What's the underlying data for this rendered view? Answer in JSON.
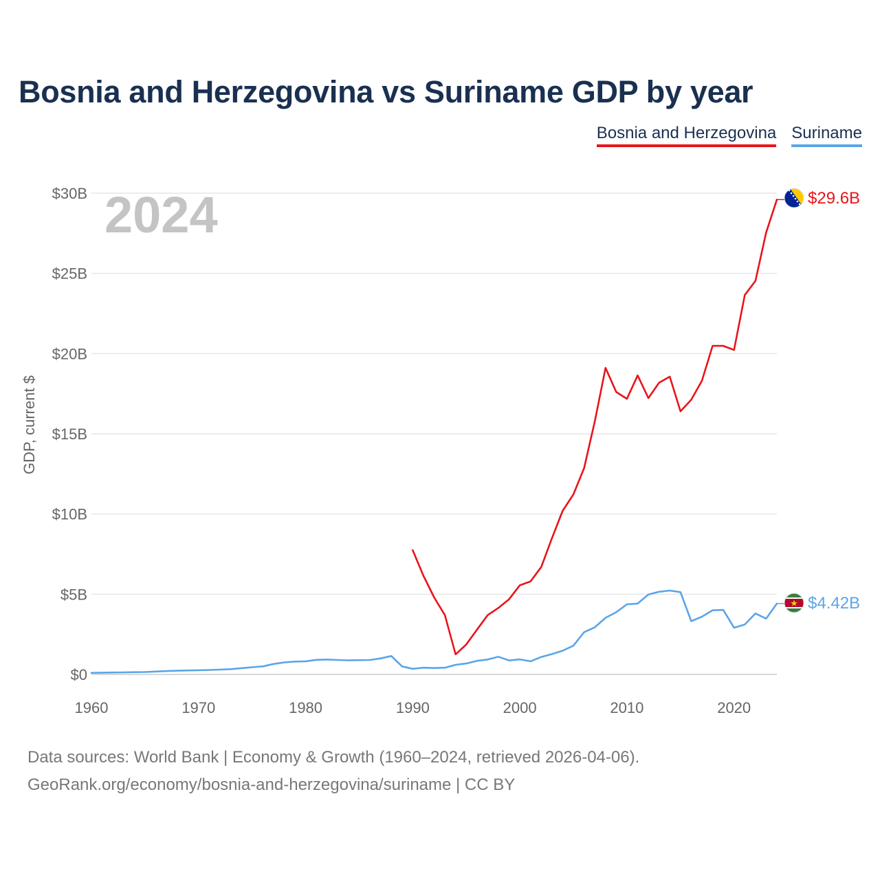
{
  "chart_data": {
    "type": "line",
    "title": "Bosnia and Herzegovina vs Suriname GDP by year",
    "current_year": "2024",
    "xlabel": "",
    "ylabel": "GDP, current $",
    "xlim": [
      1960,
      2024
    ],
    "ylim": [
      0,
      30
    ],
    "y_unit": "billion current US$",
    "x_ticks": [
      1960,
      1970,
      1980,
      1990,
      2000,
      2010,
      2020
    ],
    "x_tick_labels": [
      "1960",
      "1970",
      "1980",
      "1990",
      "2000",
      "2010",
      "2020"
    ],
    "y_ticks": [
      0,
      5,
      10,
      15,
      20,
      25,
      30
    ],
    "y_tick_labels": [
      "$0",
      "$5B",
      "$10B",
      "$15B",
      "$20B",
      "$25B",
      "$30B"
    ],
    "grid": true,
    "legend_position": "top-right",
    "series": [
      {
        "name": "Bosnia and Herzegovina",
        "color": "#e8141a",
        "flag": "bosnia-flag-icon",
        "end_label": "$29.6B",
        "x": [
          1990,
          1991,
          1992,
          1993,
          1994,
          1995,
          1996,
          1997,
          1998,
          1999,
          2000,
          2001,
          2002,
          2003,
          2004,
          2005,
          2006,
          2007,
          2008,
          2009,
          2010,
          2011,
          2012,
          2013,
          2014,
          2015,
          2016,
          2017,
          2018,
          2019,
          2020,
          2021,
          2022,
          2023,
          2024
        ],
        "values": [
          7.75,
          6.15,
          4.8,
          3.7,
          1.25,
          1.87,
          2.79,
          3.7,
          4.15,
          4.69,
          5.56,
          5.8,
          6.7,
          8.5,
          10.2,
          11.22,
          12.86,
          15.78,
          19.11,
          17.61,
          17.18,
          18.64,
          17.23,
          18.18,
          18.56,
          16.4,
          17.12,
          18.31,
          20.48,
          20.48,
          20.23,
          23.65,
          24.53,
          27.55,
          29.6
        ]
      },
      {
        "name": "Suriname",
        "color": "#5aa5e8",
        "flag": "suriname-flag-icon",
        "end_label": "$4.42B",
        "x": [
          1960,
          1961,
          1962,
          1963,
          1964,
          1965,
          1966,
          1967,
          1968,
          1969,
          1970,
          1971,
          1972,
          1973,
          1974,
          1975,
          1976,
          1977,
          1978,
          1979,
          1980,
          1981,
          1982,
          1983,
          1984,
          1985,
          1986,
          1987,
          1988,
          1989,
          1990,
          1991,
          1992,
          1993,
          1994,
          1995,
          1996,
          1997,
          1998,
          1999,
          2000,
          2001,
          2002,
          2003,
          2004,
          2005,
          2006,
          2007,
          2008,
          2009,
          2010,
          2011,
          2012,
          2013,
          2014,
          2015,
          2016,
          2017,
          2018,
          2019,
          2020,
          2021,
          2022,
          2023,
          2024
        ],
        "values": [
          0.1,
          0.11,
          0.12,
          0.13,
          0.14,
          0.15,
          0.18,
          0.21,
          0.23,
          0.25,
          0.26,
          0.28,
          0.3,
          0.33,
          0.39,
          0.45,
          0.5,
          0.65,
          0.75,
          0.8,
          0.82,
          0.91,
          0.93,
          0.9,
          0.88,
          0.89,
          0.9,
          1.0,
          1.15,
          0.5,
          0.35,
          0.42,
          0.4,
          0.42,
          0.6,
          0.68,
          0.85,
          0.93,
          1.1,
          0.87,
          0.94,
          0.82,
          1.09,
          1.27,
          1.48,
          1.79,
          2.63,
          2.94,
          3.53,
          3.88,
          4.37,
          4.42,
          4.98,
          5.15,
          5.23,
          5.13,
          3.32,
          3.6,
          4.0,
          4.02,
          2.91,
          3.11,
          3.8,
          3.48,
          4.42
        ]
      }
    ]
  },
  "footer": {
    "line1": "Data sources: World Bank | Economy & Growth (1960–2024, retrieved 2026-04-06).",
    "line2": "GeoRank.org/economy/bosnia-and-herzegovina/suriname | CC BY"
  }
}
